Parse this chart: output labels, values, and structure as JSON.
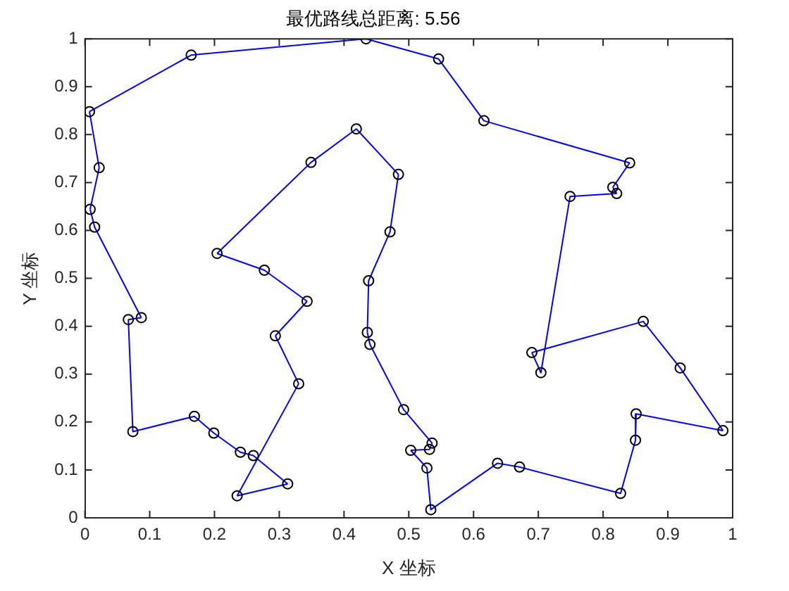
{
  "chart_data": {
    "type": "line",
    "title": "最优路线总距离: 5.56",
    "xlabel": "X 坐标",
    "ylabel": "Y 坐标",
    "series": [
      {
        "type": "scatter",
        "color": "#000000",
        "x": [
          0.007,
          0.164,
          0.434,
          0.546,
          0.616,
          0.841,
          0.815,
          0.821,
          0.749,
          0.704,
          0.69,
          0.862,
          0.919,
          0.985,
          0.851,
          0.85,
          0.827,
          0.671,
          0.637,
          0.534,
          0.528,
          0.503,
          0.532,
          0.536,
          0.492,
          0.44,
          0.436,
          0.438,
          0.471,
          0.484,
          0.419,
          0.349,
          0.204,
          0.277,
          0.343,
          0.294,
          0.33,
          0.235,
          0.313,
          0.26,
          0.24,
          0.199,
          0.169,
          0.074,
          0.067,
          0.087,
          0.015,
          0.008,
          0.022
        ],
        "values": [
          0.848,
          0.966,
          1.0,
          0.958,
          0.829,
          0.741,
          0.69,
          0.677,
          0.671,
          0.303,
          0.345,
          0.41,
          0.313,
          0.182,
          0.217,
          0.162,
          0.051,
          0.106,
          0.114,
          0.017,
          0.104,
          0.141,
          0.143,
          0.156,
          0.226,
          0.362,
          0.387,
          0.495,
          0.597,
          0.717,
          0.812,
          0.742,
          0.552,
          0.517,
          0.452,
          0.38,
          0.28,
          0.046,
          0.071,
          0.13,
          0.137,
          0.177,
          0.212,
          0.18,
          0.414,
          0.418,
          0.607,
          0.644,
          0.731
        ]
      },
      {
        "color": "#0000ff",
        "marker": "none",
        "x": [
          0.007,
          0.164,
          0.434,
          0.546,
          0.616,
          0.841
        ],
        "values": [
          0.848,
          0.966,
          1.0,
          0.958,
          0.829,
          0.741
        ]
      },
      {
        "color": "#0000ff",
        "marker": "none",
        "x": [
          0.841,
          0.815
        ],
        "values": [
          0.741,
          0.69
        ]
      },
      {
        "color": "#0000ff",
        "marker": "none",
        "x": [
          0.815,
          0.821
        ],
        "values": [
          0.69,
          0.677
        ]
      },
      {
        "color": "#0000ff",
        "marker": "none",
        "x": [
          0.821,
          0.749,
          0.704,
          0.69
        ],
        "values": [
          0.677,
          0.671,
          0.303,
          0.345
        ]
      },
      {
        "color": "#0000ff",
        "marker": "none",
        "x": [
          0.69,
          0.862,
          0.919,
          0.985
        ],
        "values": [
          0.345,
          0.41,
          0.313,
          0.182
        ]
      },
      {
        "color": "#0000ff",
        "marker": "none",
        "x": [
          0.985,
          0.851,
          0.85,
          0.827,
          0.671,
          0.637,
          0.534,
          0.528,
          0.503
        ],
        "values": [
          0.182,
          0.217,
          0.162,
          0.051,
          0.106,
          0.114,
          0.017,
          0.104,
          0.141
        ]
      },
      {
        "color": "#0000ff",
        "marker": "none",
        "x": [
          0.503,
          0.532,
          0.536
        ],
        "values": [
          0.141,
          0.143,
          0.156
        ]
      },
      {
        "color": "#0000ff",
        "marker": "none",
        "x": [
          0.536,
          0.492,
          0.44,
          0.436
        ],
        "values": [
          0.156,
          0.226,
          0.362,
          0.387
        ]
      },
      {
        "color": "#0000ff",
        "marker": "none",
        "x": [
          0.436,
          0.438,
          0.471,
          0.484
        ],
        "values": [
          0.387,
          0.495,
          0.597,
          0.717
        ]
      },
      {
        "color": "#0000ff",
        "marker": "none",
        "x": [
          0.484,
          0.419,
          0.349,
          0.204
        ],
        "values": [
          0.717,
          0.812,
          0.742,
          0.552
        ]
      },
      {
        "color": "#0000ff",
        "marker": "none",
        "x": [
          0.204,
          0.277,
          0.343
        ],
        "values": [
          0.552,
          0.517,
          0.452
        ]
      },
      {
        "color": "#0000ff",
        "marker": "none",
        "x": [
          0.343,
          0.294
        ],
        "values": [
          0.452,
          0.38
        ]
      },
      {
        "color": "#0000ff",
        "marker": "none",
        "x": [
          0.294,
          0.33
        ],
        "values": [
          0.38,
          0.28
        ]
      },
      {
        "color": "#0000ff",
        "marker": "none",
        "x": [
          0.33,
          0.235
        ],
        "values": [
          0.28,
          0.046
        ]
      },
      {
        "color": "#0000ff",
        "marker": "none",
        "x": [
          0.235,
          0.313
        ],
        "values": [
          0.046,
          0.071
        ]
      },
      {
        "color": "#0000ff",
        "marker": "none",
        "x": [
          0.313,
          0.26,
          0.24,
          0.199,
          0.169,
          0.074,
          0.067
        ],
        "values": [
          0.071,
          0.13,
          0.137,
          0.177,
          0.212,
          0.18,
          0.414
        ]
      },
      {
        "color": "#0000ff",
        "marker": "none",
        "x": [
          0.067,
          0.087
        ],
        "values": [
          0.414,
          0.418
        ]
      },
      {
        "color": "#0000ff",
        "marker": "none",
        "x": [
          0.087,
          0.015,
          0.008
        ],
        "values": [
          0.418,
          0.607,
          0.644
        ]
      },
      {
        "color": "#0000ff",
        "marker": "none",
        "x": [
          0.008,
          0.022
        ],
        "values": [
          0.644,
          0.731
        ]
      },
      {
        "color": "#0000ff",
        "marker": "none",
        "x": [
          0.022,
          0.007
        ],
        "values": [
          0.731,
          0.848
        ]
      }
    ],
    "xlim": [
      0,
      1
    ],
    "ylim": [
      0,
      1
    ],
    "xticks": [
      0,
      0.1,
      0.2,
      0.3,
      0.4,
      0.5,
      0.6,
      0.7,
      0.8,
      0.9,
      1
    ],
    "yticks": [
      0,
      0.1,
      0.2,
      0.3,
      0.4,
      0.5,
      0.6,
      0.7,
      0.8,
      0.9,
      1
    ],
    "grid": false,
    "legend": false,
    "marker": "circle",
    "line_style": "solid"
  }
}
